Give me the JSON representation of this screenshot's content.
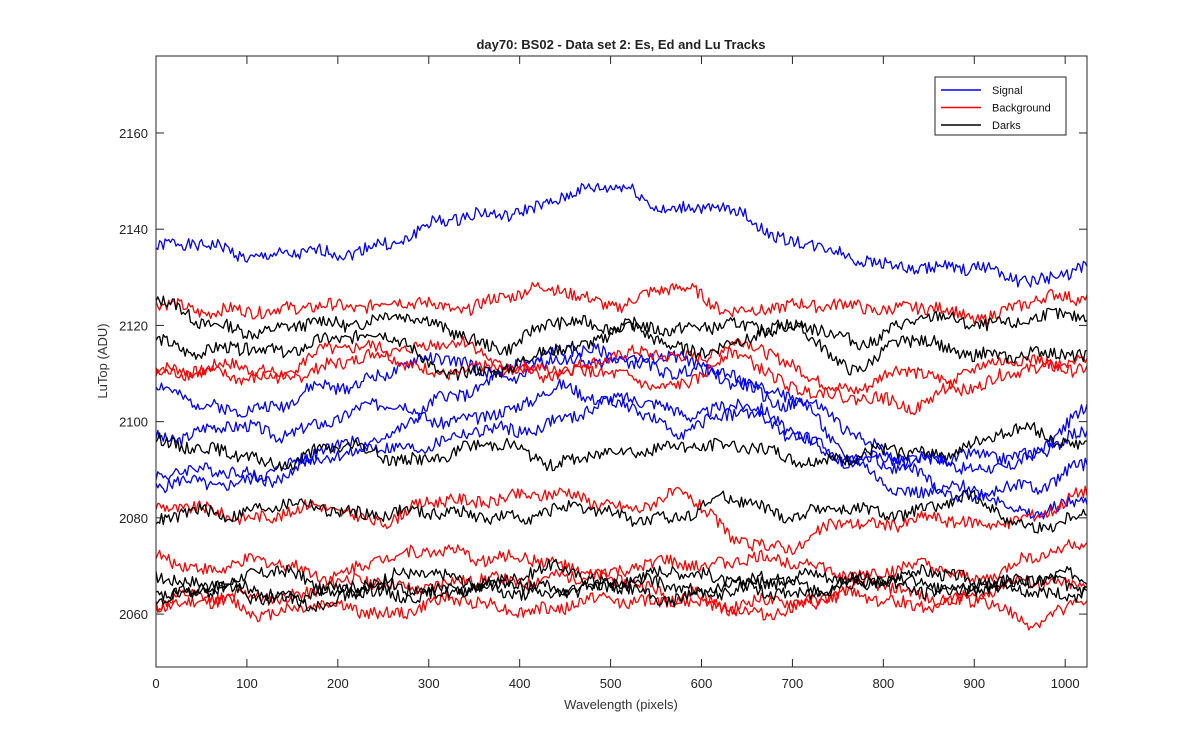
{
  "chart_data": {
    "type": "line",
    "title": "day70: BS02 - Data set 2: Es, Ed and Lu Tracks",
    "xlabel": "Wavelength (pixels)",
    "ylabel": "LuTop (ADU)",
    "xlim": [
      0,
      1024
    ],
    "ylim": [
      2049,
      2176
    ],
    "x_ticks": [
      0,
      100,
      200,
      300,
      400,
      500,
      600,
      700,
      800,
      900,
      1000
    ],
    "y_ticks": [
      2060,
      2080,
      2100,
      2120,
      2140,
      2160
    ],
    "grid": false,
    "legend_position": "top-right",
    "legend": [
      "Signal",
      "Background",
      "Darks"
    ],
    "colors": {
      "Signal": "#0000ff",
      "Background": "#ff0000",
      "Darks": "#000000"
    },
    "x": [
      0,
      64,
      128,
      192,
      256,
      320,
      384,
      448,
      512,
      576,
      640,
      704,
      768,
      832,
      896,
      960,
      1024
    ],
    "series": [
      {
        "name": "Signal",
        "group": "Signal",
        "values": [
          2136,
          2136,
          2135,
          2134,
          2138,
          2141,
          2144,
          2146,
          2149,
          2144,
          2143,
          2138,
          2133,
          2133,
          2131,
          2130,
          2132
        ]
      },
      {
        "group": "Signal",
        "values": [
          2106,
          2104,
          2102,
          2108,
          2110,
          2113,
          2111,
          2112,
          2114,
          2112,
          2110,
          2104,
          2098,
          2092,
          2090,
          2093,
          2101
        ]
      },
      {
        "group": "Signal",
        "values": [
          2097,
          2099,
          2097,
          2101,
          2103,
          2101,
          2101,
          2108,
          2104,
          2102,
          2104,
          2097,
          2093,
          2091,
          2094,
          2092,
          2098
        ]
      },
      {
        "group": "Signal",
        "values": [
          2090,
          2089,
          2089,
          2094,
          2095,
          2096,
          2098,
          2101,
          2103,
          2099,
          2101,
          2098,
          2091,
          2090,
          2084,
          2086,
          2092
        ]
      },
      {
        "group": "Signal",
        "values": [
          2086,
          2087,
          2090,
          2092,
          2098,
          2104,
          2110,
          2114,
          2114,
          2110,
          2108,
          2104,
          2091,
          2086,
          2085,
          2082,
          2083
        ]
      },
      {
        "name": "Background",
        "group": "Background",
        "values": [
          2124,
          2124,
          2122,
          2125,
          2124,
          2124,
          2126,
          2127,
          2125,
          2127,
          2124,
          2123,
          2125,
          2123,
          2122,
          2125,
          2125
        ]
      },
      {
        "group": "Background",
        "values": [
          2112,
          2111,
          2110,
          2112,
          2113,
          2111,
          2110,
          2112,
          2113,
          2114,
          2116,
          2111,
          2107,
          2110,
          2108,
          2110,
          2112
        ]
      },
      {
        "group": "Background",
        "values": [
          2110,
          2109,
          2110,
          2114,
          2116,
          2116,
          2112,
          2110,
          2109,
          2108,
          2113,
          2108,
          2104,
          2104,
          2110,
          2113,
          2113
        ]
      },
      {
        "group": "Background",
        "values": [
          2081,
          2082,
          2080,
          2082,
          2080,
          2083,
          2085,
          2084,
          2083,
          2084,
          2076,
          2074,
          2079,
          2080,
          2078,
          2081,
          2084
        ]
      },
      {
        "group": "Background",
        "values": [
          2072,
          2070,
          2070,
          2069,
          2071,
          2074,
          2071,
          2070,
          2069,
          2070,
          2072,
          2070,
          2069,
          2069,
          2068,
          2071,
          2074
        ]
      },
      {
        "group": "Background",
        "values": [
          2063,
          2062,
          2064,
          2066,
          2066,
          2067,
          2066,
          2069,
          2066,
          2064,
          2061,
          2063,
          2066,
          2064,
          2064,
          2066,
          2067
        ]
      },
      {
        "group": "Background",
        "values": [
          2062,
          2063,
          2061,
          2061,
          2061,
          2062,
          2062,
          2061,
          2063,
          2064,
          2060,
          2062,
          2063,
          2063,
          2062,
          2059,
          2063
        ]
      },
      {
        "name": "Darks",
        "group": "Darks",
        "values": [
          2124,
          2121,
          2118,
          2121,
          2122,
          2119,
          2116,
          2120,
          2121,
          2118,
          2121,
          2119,
          2117,
          2121,
          2120,
          2122,
          2121
        ]
      },
      {
        "group": "Darks",
        "values": [
          2117,
          2115,
          2114,
          2118,
          2117,
          2111,
          2110,
          2116,
          2119,
          2115,
          2117,
          2119,
          2112,
          2116,
          2115,
          2113,
          2114
        ]
      },
      {
        "group": "Darks",
        "values": [
          2097,
          2093,
          2092,
          2094,
          2093,
          2093,
          2095,
          2092,
          2093,
          2096,
          2094,
          2093,
          2092,
          2094,
          2095,
          2098,
          2096
        ]
      },
      {
        "group": "Darks",
        "values": [
          2079,
          2081,
          2083,
          2081,
          2082,
          2080,
          2081,
          2081,
          2081,
          2080,
          2084,
          2081,
          2081,
          2082,
          2083,
          2079,
          2080
        ]
      },
      {
        "group": "Darks",
        "values": [
          2067,
          2067,
          2068,
          2066,
          2067,
          2068,
          2067,
          2069,
          2067,
          2068,
          2068,
          2067,
          2068,
          2068,
          2067,
          2067,
          2067
        ]
      },
      {
        "group": "Darks",
        "values": [
          2065,
          2065,
          2064,
          2063,
          2065,
          2066,
          2065,
          2066,
          2066,
          2066,
          2065,
          2066,
          2066,
          2066,
          2066,
          2066,
          2066
        ]
      },
      {
        "group": "Darks",
        "values": [
          2063,
          2065,
          2064,
          2064,
          2065,
          2064,
          2065,
          2065,
          2065,
          2064,
          2065,
          2065,
          2066,
          2066,
          2065,
          2065,
          2065
        ]
      }
    ]
  }
}
